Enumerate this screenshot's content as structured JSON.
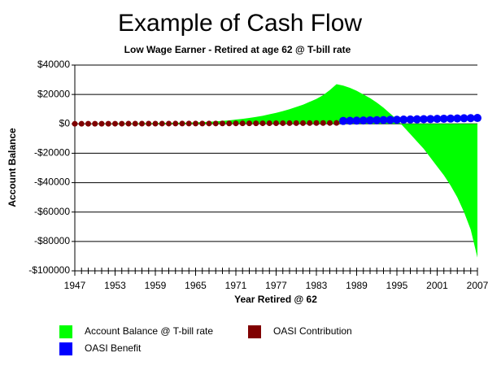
{
  "chart_data": {
    "type": "combo",
    "title": "Example of Cash Flow",
    "subtitle": "Low Wage Earner - Retired at age 62 @ T-bill rate",
    "x_label": "Year Retired @ 62",
    "y_label": "Account Balance",
    "xlim": [
      1947,
      2007
    ],
    "xticks": [
      1947,
      1953,
      1959,
      1965,
      1971,
      1977,
      1983,
      1989,
      1995,
      2001,
      2007
    ],
    "ylim": [
      -100000,
      40000
    ],
    "yticks": [
      {
        "value": -100000,
        "label": "-$100000"
      },
      {
        "value": -80000,
        "label": "-$80000"
      },
      {
        "value": -60000,
        "label": "-$60000"
      },
      {
        "value": -40000,
        "label": "-$40000"
      },
      {
        "value": -20000,
        "label": "-$20000"
      },
      {
        "value": 0,
        "label": "$0"
      },
      {
        "value": 20000,
        "label": "$20000"
      },
      {
        "value": 40000,
        "label": "$40000"
      }
    ],
    "grid": true,
    "x": [
      1947,
      1948,
      1949,
      1950,
      1951,
      1952,
      1953,
      1954,
      1955,
      1956,
      1957,
      1958,
      1959,
      1960,
      1961,
      1962,
      1963,
      1964,
      1965,
      1966,
      1967,
      1968,
      1969,
      1970,
      1971,
      1972,
      1973,
      1974,
      1975,
      1976,
      1977,
      1978,
      1979,
      1980,
      1981,
      1982,
      1983,
      1984,
      1985,
      1986,
      1987,
      1988,
      1989,
      1990,
      1991,
      1992,
      1993,
      1994,
      1995,
      1996,
      1997,
      1998,
      1999,
      2000,
      2001,
      2002,
      2003,
      2004,
      2005,
      2006,
      2007
    ],
    "series": [
      {
        "name": "Account Balance @ T-bill rate",
        "type": "area",
        "color": "#00ff00",
        "values": [
          0,
          50,
          100,
          150,
          200,
          250,
          300,
          350,
          400,
          450,
          500,
          550,
          600,
          650,
          700,
          750,
          800,
          900,
          1000,
          1200,
          1400,
          1700,
          2000,
          2400,
          2900,
          3400,
          4000,
          4700,
          5500,
          6500,
          7500,
          8700,
          10000,
          11500,
          13000,
          15000,
          17000,
          19500,
          23000,
          27000,
          26000,
          24500,
          22500,
          20000,
          17500,
          14500,
          11000,
          7000,
          3000,
          -2000,
          -7000,
          -12000,
          -17000,
          -23000,
          -29000,
          -35000,
          -42000,
          -50000,
          -60000,
          -72000,
          -91000
        ]
      },
      {
        "name": "OASI Contribution",
        "type": "scatter",
        "color": "#800000",
        "values": [
          50,
          60,
          70,
          80,
          90,
          100,
          110,
          120,
          130,
          140,
          150,
          160,
          170,
          180,
          190,
          200,
          210,
          220,
          230,
          240,
          250,
          260,
          280,
          300,
          320,
          340,
          360,
          380,
          400,
          420,
          440,
          460,
          480,
          500,
          520,
          540,
          560,
          580,
          600,
          620,
          null,
          null,
          null,
          null,
          null,
          null,
          null,
          null,
          null,
          null,
          null,
          null,
          null,
          null,
          null,
          null,
          null,
          null,
          null,
          null,
          null
        ]
      },
      {
        "name": "OASI Benefit",
        "type": "scatter",
        "color": "#0000ff",
        "values": [
          null,
          null,
          null,
          null,
          null,
          null,
          null,
          null,
          null,
          null,
          null,
          null,
          null,
          null,
          null,
          null,
          null,
          null,
          null,
          null,
          null,
          null,
          null,
          null,
          null,
          null,
          null,
          null,
          null,
          null,
          null,
          null,
          null,
          null,
          null,
          null,
          null,
          null,
          null,
          null,
          2000,
          2100,
          2200,
          2300,
          2400,
          2500,
          2600,
          2700,
          2800,
          2900,
          3000,
          3100,
          3200,
          3300,
          3400,
          3500,
          3600,
          3700,
          3800,
          3900,
          4000
        ]
      }
    ]
  }
}
